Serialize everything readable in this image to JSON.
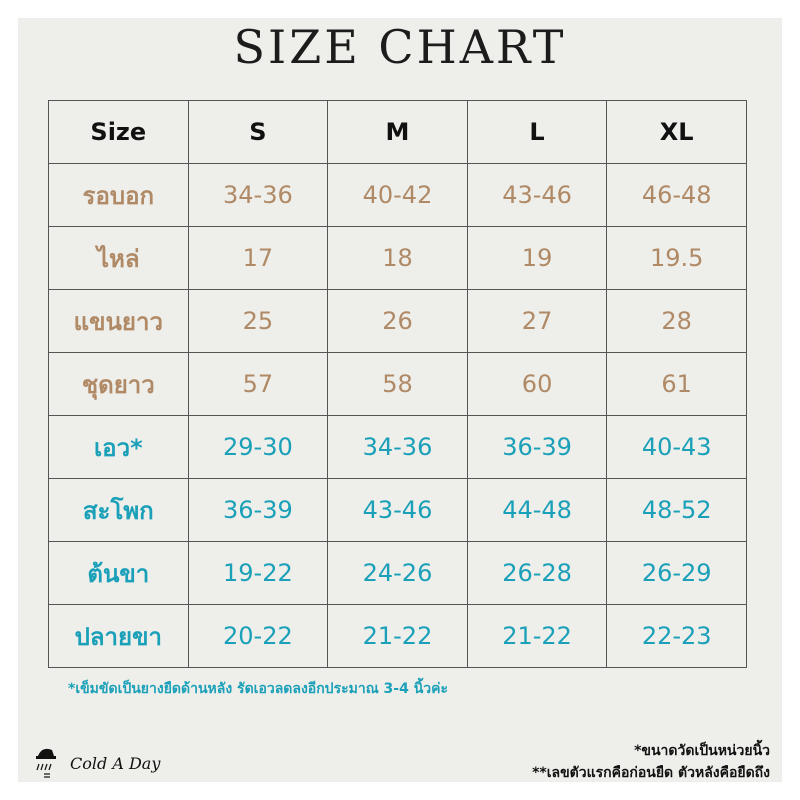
{
  "title": "SIZE CHART",
  "colors": {
    "measure_brown": "#b08a66",
    "measure_teal": "#1aa0b8"
  },
  "table": {
    "headers": [
      "Size",
      "S",
      "M",
      "L",
      "XL"
    ],
    "rows": [
      {
        "label": "รอบอก",
        "values": [
          "34-36",
          "40-42",
          "43-46",
          "46-48"
        ],
        "color": "brown"
      },
      {
        "label": "ไหล่",
        "values": [
          "17",
          "18",
          "19",
          "19.5"
        ],
        "color": "brown"
      },
      {
        "label": "แขนยาว",
        "values": [
          "25",
          "26",
          "27",
          "28"
        ],
        "color": "brown"
      },
      {
        "label": "ชุดยาว",
        "values": [
          "57",
          "58",
          "60",
          "61"
        ],
        "color": "brown"
      },
      {
        "label": "เอว*",
        "values": [
          "29-30",
          "34-36",
          "36-39",
          "40-43"
        ],
        "color": "teal"
      },
      {
        "label": "สะโพก",
        "values": [
          "36-39",
          "43-46",
          "44-48",
          "48-52"
        ],
        "color": "teal"
      },
      {
        "label": "ต้นขา",
        "values": [
          "19-22",
          "24-26",
          "26-28",
          "26-29"
        ],
        "color": "teal"
      },
      {
        "label": "ปลายขา",
        "values": [
          "20-22",
          "21-22",
          "21-22",
          "22-23"
        ],
        "color": "teal"
      }
    ]
  },
  "notes": {
    "waist": "*เข็มขัดเป็นยางยืดด้านหลัง รัดเอวลดลงอีกประมาณ 3-4 นิ้วค่ะ",
    "unit": "*ขนาดวัดเป็นหน่วยนิ้ว",
    "stretch": "**เลขตัวแรกคือก่อนยืด ตัวหลังคือยืดถึง"
  },
  "brand": {
    "name": "Cold A Day"
  }
}
